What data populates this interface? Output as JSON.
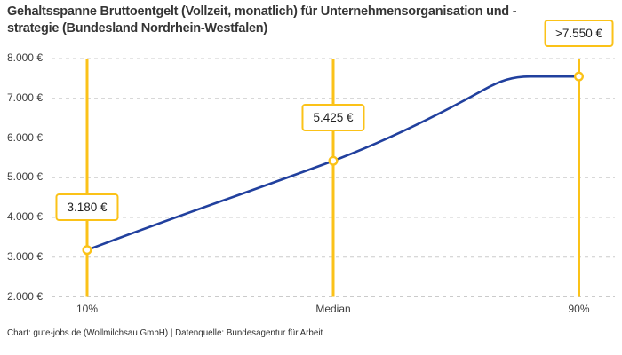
{
  "title": "Gehaltsspanne Bruttoentgelt (Vollzeit, monatlich) für Unternehmensorganisation und -strategie (Bundesland Nordrhein-Westfalen)",
  "footer": "Chart: gute-jobs.de (Wollmilchsau GmbH) | Datenquelle: Bundesagentur für Arbeit",
  "chart_data": {
    "type": "line",
    "categories": [
      "10%",
      "Median",
      "90%"
    ],
    "values": [
      3180,
      5425,
      7550
    ],
    "value_labels": [
      "3.180 €",
      "5.425 €",
      ">7.550 €"
    ],
    "ylim": [
      2000,
      8000
    ],
    "yticks": [
      2000,
      3000,
      4000,
      5000,
      6000,
      7000,
      8000
    ],
    "ytick_labels": [
      "2.000 €",
      "3.000 €",
      "4.000 €",
      "5.000 €",
      "6.000 €",
      "7.000 €",
      "8.000 €"
    ],
    "grid": "horizontal-dashed",
    "legend": "none",
    "line_shape": "rises from 10% through Median then plateaus at 7550 before the 90% marker (capped value, shown as >7.550 €)",
    "colors": {
      "line": "#21409e",
      "range_line": "#fbc218",
      "marker_stroke": "#fbc218",
      "marker_fill": "#ffffff",
      "label_box_border": "#fbc218",
      "grid": "#cbcbcb",
      "title_text": "#353535",
      "axis_text": "#3c3c3c"
    }
  }
}
